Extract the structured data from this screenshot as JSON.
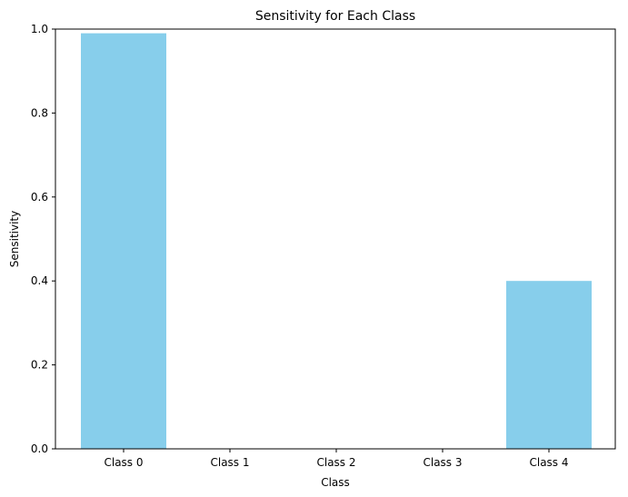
{
  "chart_data": {
    "type": "bar",
    "title": "Sensitivity for Each Class",
    "xlabel": "Class",
    "ylabel": "Sensitivity",
    "categories": [
      "Class 0",
      "Class 1",
      "Class 2",
      "Class 3",
      "Class 4"
    ],
    "values": [
      0.99,
      0.0,
      0.0,
      0.0,
      0.4
    ],
    "ylim": [
      0,
      1
    ],
    "yticks": [
      "0.0",
      "0.2",
      "0.4",
      "0.6",
      "0.8",
      "1.0"
    ],
    "bar_color": "#87ceeb",
    "grid": false,
    "legend": "none"
  }
}
